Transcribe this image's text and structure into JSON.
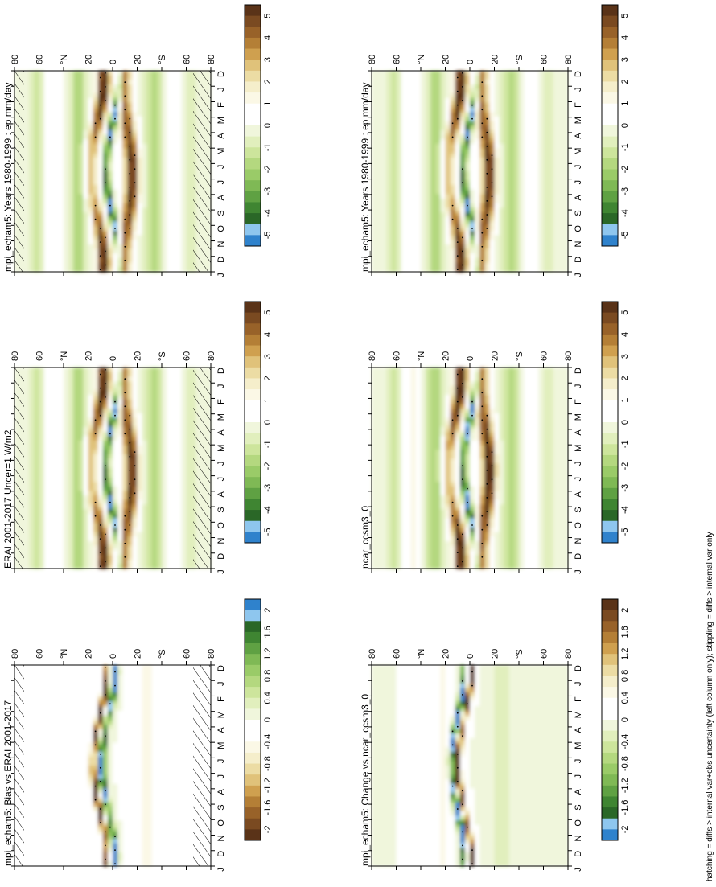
{
  "figure": {
    "footnote": "hatching = diffs > internal var+obs uncertainty (left column only); stippling = diffs > internal var only"
  },
  "chart_data": [
    {
      "type": "heatmap",
      "id": "p1",
      "title": "mpi_echam5: Years 1980-1999 : ep mm/day",
      "months": [
        "D",
        "J",
        "F",
        "M",
        "A",
        "M",
        "J",
        "J",
        "A",
        "S",
        "O",
        "N",
        "D",
        "J"
      ],
      "lat_ticks": [
        "80",
        "60",
        "°N",
        "20",
        "0",
        "20",
        "°S",
        "60",
        "80"
      ],
      "levels": [
        "5",
        "4",
        "3",
        "2",
        "1",
        "0",
        "-1",
        "-2",
        "-3",
        "-4",
        "-5"
      ],
      "hatching": true
    },
    {
      "type": "heatmap",
      "id": "p2",
      "title": "mpi_echam5: Years 1980-1999 : ep mm/day",
      "months": [
        "D",
        "J",
        "F",
        "M",
        "A",
        "M",
        "J",
        "J",
        "A",
        "S",
        "O",
        "N",
        "D",
        "J"
      ],
      "lat_ticks": [
        "80",
        "60",
        "°N",
        "20",
        "0",
        "20",
        "°S",
        "60",
        "80"
      ],
      "levels": [
        "5",
        "4",
        "3",
        "2",
        "1",
        "0",
        "-1",
        "-2",
        "-3",
        "-4",
        "-5"
      ],
      "hatching": false
    },
    {
      "type": "heatmap",
      "id": "p3",
      "title": "ERAI 2001-2017 Uncer=1 W/m2",
      "months": [
        "D",
        "J",
        "F",
        "M",
        "A",
        "M",
        "J",
        "J",
        "A",
        "S",
        "O",
        "N",
        "D",
        "J"
      ],
      "lat_ticks": [
        "80",
        "60",
        "°N",
        "20",
        "0",
        "20",
        "°S",
        "60",
        "80"
      ],
      "levels": [
        "5",
        "4",
        "3",
        "2",
        "1",
        "0",
        "-1",
        "-2",
        "-3",
        "-4",
        "-5"
      ],
      "hatching": true
    },
    {
      "type": "heatmap",
      "id": "p4",
      "title": "ncar_ccsm3_0",
      "months": [
        "D",
        "J",
        "F",
        "M",
        "A",
        "M",
        "J",
        "J",
        "A",
        "S",
        "O",
        "N",
        "D",
        "J"
      ],
      "lat_ticks": [
        "80",
        "60",
        "°N",
        "20",
        "0",
        "20",
        "°S",
        "60",
        "80"
      ],
      "levels": [
        "5",
        "4",
        "3",
        "2",
        "1",
        "0",
        "-1",
        "-2",
        "-3",
        "-4",
        "-5"
      ],
      "hatching": false
    },
    {
      "type": "heatmap",
      "id": "p5",
      "title": "mpi_echam5: Bias vs ERAI 2001-2017",
      "months": [
        "D",
        "J",
        "F",
        "M",
        "A",
        "M",
        "J",
        "J",
        "A",
        "S",
        "O",
        "N",
        "D",
        "J"
      ],
      "lat_ticks": [
        "80",
        "60",
        "°N",
        "20",
        "0",
        "20",
        "°S",
        "60",
        "80"
      ],
      "levels": [
        "2",
        "1.6",
        "1.2",
        "0.8",
        "0.4",
        "0",
        "-0.4",
        "-0.8",
        "-1.2",
        "-1.6",
        "-2"
      ],
      "hatching": true
    },
    {
      "type": "heatmap",
      "id": "p6",
      "title": "mpi_echam5: Change vs ncar_ccsm3_0",
      "months": [
        "D",
        "J",
        "F",
        "M",
        "A",
        "M",
        "J",
        "J",
        "A",
        "S",
        "O",
        "N",
        "D",
        "J"
      ],
      "lat_ticks": [
        "80",
        "60",
        "°N",
        "20",
        "0",
        "20",
        "°S",
        "60",
        "80"
      ],
      "levels": [
        "2",
        "1.6",
        "1.2",
        "0.8",
        "0.4",
        "0",
        "-0.4",
        "-0.8",
        "-1.2",
        "-1.6",
        "-2"
      ],
      "hatching": false
    }
  ]
}
